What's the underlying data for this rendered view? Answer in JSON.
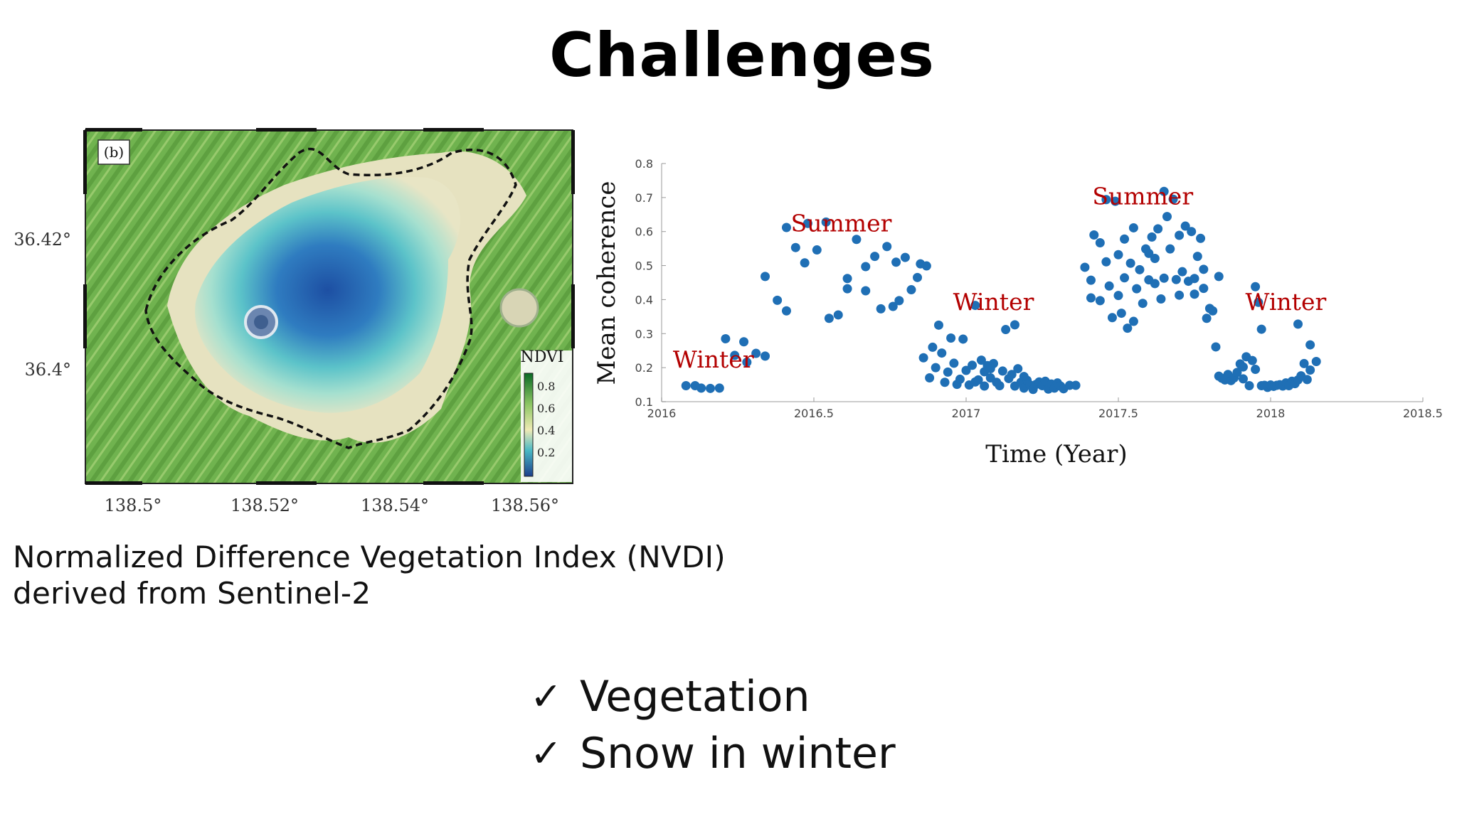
{
  "slide": {
    "title": "Challenges",
    "caption_line1": "Normalized Difference Vegetation Index (NVDI)",
    "caption_line2": "derived from Sentinel-2",
    "bullets": [
      {
        "check": "✓",
        "text": "Vegetation"
      },
      {
        "check": "✓",
        "text": "Snow in winter"
      }
    ]
  },
  "map": {
    "panel_label": "(b)",
    "lat_labels": [
      "36.42°",
      "36.4°"
    ],
    "lon_labels": [
      "138.5°",
      "138.52°",
      "138.54°",
      "138.56°"
    ],
    "colorbar_title": "NDVI",
    "colorbar_ticks": [
      "0.8",
      "0.6",
      "0.4",
      "0.2"
    ]
  },
  "chart_data": {
    "type": "scatter",
    "xlabel": "Time (Year)",
    "ylabel": "Mean coherence",
    "xlim": [
      2016,
      2018.5
    ],
    "ylim": [
      0.1,
      0.8
    ],
    "xticks": [
      "2016",
      "2016.5",
      "2017",
      "2017.5",
      "2018",
      "2018.5"
    ],
    "yticks": [
      "0.1",
      "0.2",
      "0.3",
      "0.4",
      "0.5",
      "0.6",
      "0.7",
      "0.8"
    ],
    "annotations": [
      {
        "text": "Winter",
        "x": 2016.17,
        "y": 0.2
      },
      {
        "text": "Summer",
        "x": 2016.59,
        "y": 0.6
      },
      {
        "text": "Winter",
        "x": 2017.09,
        "y": 0.37
      },
      {
        "text": "Summer",
        "x": 2017.58,
        "y": 0.68
      },
      {
        "text": "Winter",
        "x": 2018.05,
        "y": 0.37
      }
    ],
    "color": "#1f6fb5",
    "annotation_color": "#b30000",
    "points": [
      [
        2016.08,
        0.147
      ],
      [
        2016.11,
        0.147
      ],
      [
        2016.13,
        0.14
      ],
      [
        2016.16,
        0.139
      ],
      [
        2016.19,
        0.14
      ],
      [
        2016.21,
        0.285
      ],
      [
        2016.24,
        0.236
      ],
      [
        2016.27,
        0.276
      ],
      [
        2016.28,
        0.216
      ],
      [
        2016.31,
        0.242
      ],
      [
        2016.34,
        0.234
      ],
      [
        2016.34,
        0.468
      ],
      [
        2016.38,
        0.398
      ],
      [
        2016.41,
        0.367
      ],
      [
        2016.41,
        0.612
      ],
      [
        2016.44,
        0.553
      ],
      [
        2016.47,
        0.508
      ],
      [
        2016.48,
        0.624
      ],
      [
        2016.51,
        0.546
      ],
      [
        2016.54,
        0.628
      ],
      [
        2016.55,
        0.345
      ],
      [
        2016.58,
        0.355
      ],
      [
        2016.61,
        0.462
      ],
      [
        2016.61,
        0.432
      ],
      [
        2016.64,
        0.577
      ],
      [
        2016.67,
        0.426
      ],
      [
        2016.67,
        0.497
      ],
      [
        2016.7,
        0.527
      ],
      [
        2016.72,
        0.373
      ],
      [
        2016.74,
        0.556
      ],
      [
        2016.76,
        0.38
      ],
      [
        2016.77,
        0.51
      ],
      [
        2016.78,
        0.397
      ],
      [
        2016.8,
        0.524
      ],
      [
        2016.82,
        0.429
      ],
      [
        2016.84,
        0.465
      ],
      [
        2016.85,
        0.505
      ],
      [
        2016.87,
        0.499
      ],
      [
        2016.86,
        0.229
      ],
      [
        2016.88,
        0.17
      ],
      [
        2016.89,
        0.26
      ],
      [
        2016.9,
        0.2
      ],
      [
        2016.91,
        0.325
      ],
      [
        2016.92,
        0.243
      ],
      [
        2016.93,
        0.157
      ],
      [
        2016.94,
        0.187
      ],
      [
        2016.95,
        0.287
      ],
      [
        2016.96,
        0.213
      ],
      [
        2016.97,
        0.151
      ],
      [
        2016.98,
        0.166
      ],
      [
        2016.99,
        0.284
      ],
      [
        2017.0,
        0.192
      ],
      [
        2017.01,
        0.149
      ],
      [
        2017.02,
        0.207
      ],
      [
        2017.03,
        0.158
      ],
      [
        2017.03,
        0.383
      ],
      [
        2017.04,
        0.164
      ],
      [
        2017.05,
        0.222
      ],
      [
        2017.06,
        0.188
      ],
      [
        2017.06,
        0.146
      ],
      [
        2017.07,
        0.206
      ],
      [
        2017.08,
        0.17
      ],
      [
        2017.09,
        0.212
      ],
      [
        2017.1,
        0.157
      ],
      [
        2017.11,
        0.147
      ],
      [
        2017.12,
        0.19
      ],
      [
        2017.13,
        0.312
      ],
      [
        2017.14,
        0.168
      ],
      [
        2017.15,
        0.18
      ],
      [
        2017.16,
        0.146
      ],
      [
        2017.17,
        0.197
      ],
      [
        2017.18,
        0.157
      ],
      [
        2017.19,
        0.14
      ],
      [
        2017.2,
        0.163
      ],
      [
        2017.21,
        0.149
      ],
      [
        2017.22,
        0.136
      ],
      [
        2017.23,
        0.151
      ],
      [
        2017.24,
        0.158
      ],
      [
        2017.25,
        0.147
      ],
      [
        2017.26,
        0.16
      ],
      [
        2017.27,
        0.137
      ],
      [
        2017.28,
        0.152
      ],
      [
        2017.29,
        0.14
      ],
      [
        2017.3,
        0.155
      ],
      [
        2017.31,
        0.146
      ],
      [
        2017.32,
        0.138
      ],
      [
        2017.34,
        0.148
      ],
      [
        2017.36,
        0.148
      ],
      [
        2017.19,
        0.174
      ],
      [
        2017.16,
        0.326
      ],
      [
        2017.08,
        0.197
      ],
      [
        2017.39,
        0.495
      ],
      [
        2017.41,
        0.457
      ],
      [
        2017.41,
        0.405
      ],
      [
        2017.42,
        0.59
      ],
      [
        2017.44,
        0.567
      ],
      [
        2017.44,
        0.397
      ],
      [
        2017.46,
        0.694
      ],
      [
        2017.46,
        0.511
      ],
      [
        2017.47,
        0.44
      ],
      [
        2017.48,
        0.347
      ],
      [
        2017.49,
        0.689
      ],
      [
        2017.5,
        0.532
      ],
      [
        2017.5,
        0.412
      ],
      [
        2017.51,
        0.36
      ],
      [
        2017.52,
        0.578
      ],
      [
        2017.52,
        0.464
      ],
      [
        2017.53,
        0.316
      ],
      [
        2017.54,
        0.507
      ],
      [
        2017.55,
        0.336
      ],
      [
        2017.55,
        0.611
      ],
      [
        2017.56,
        0.432
      ],
      [
        2017.57,
        0.488
      ],
      [
        2017.58,
        0.389
      ],
      [
        2017.59,
        0.549
      ],
      [
        2017.6,
        0.536
      ],
      [
        2017.6,
        0.458
      ],
      [
        2017.61,
        0.584
      ],
      [
        2017.62,
        0.447
      ],
      [
        2017.62,
        0.521
      ],
      [
        2017.63,
        0.608
      ],
      [
        2017.64,
        0.402
      ],
      [
        2017.65,
        0.463
      ],
      [
        2017.65,
        0.718
      ],
      [
        2017.66,
        0.644
      ],
      [
        2017.67,
        0.549
      ],
      [
        2017.68,
        0.695
      ],
      [
        2017.69,
        0.459
      ],
      [
        2017.7,
        0.589
      ],
      [
        2017.7,
        0.413
      ],
      [
        2017.71,
        0.482
      ],
      [
        2017.72,
        0.616
      ],
      [
        2017.73,
        0.454
      ],
      [
        2017.74,
        0.6
      ],
      [
        2017.75,
        0.416
      ],
      [
        2017.75,
        0.462
      ],
      [
        2017.76,
        0.527
      ],
      [
        2017.77,
        0.58
      ],
      [
        2017.78,
        0.489
      ],
      [
        2017.78,
        0.433
      ],
      [
        2017.79,
        0.345
      ],
      [
        2017.8,
        0.374
      ],
      [
        2017.81,
        0.367
      ],
      [
        2017.82,
        0.261
      ],
      [
        2017.83,
        0.468
      ],
      [
        2017.83,
        0.175
      ],
      [
        2017.84,
        0.169
      ],
      [
        2017.85,
        0.164
      ],
      [
        2017.86,
        0.18
      ],
      [
        2017.87,
        0.162
      ],
      [
        2017.88,
        0.17
      ],
      [
        2017.89,
        0.186
      ],
      [
        2017.9,
        0.211
      ],
      [
        2017.91,
        0.202
      ],
      [
        2017.91,
        0.167
      ],
      [
        2017.92,
        0.232
      ],
      [
        2017.93,
        0.147
      ],
      [
        2017.94,
        0.221
      ],
      [
        2017.95,
        0.195
      ],
      [
        2017.95,
        0.438
      ],
      [
        2017.96,
        0.392
      ],
      [
        2017.97,
        0.313
      ],
      [
        2017.97,
        0.147
      ],
      [
        2017.98,
        0.148
      ],
      [
        2017.99,
        0.142
      ],
      [
        2018.0,
        0.149
      ],
      [
        2018.01,
        0.145
      ],
      [
        2018.02,
        0.148
      ],
      [
        2018.03,
        0.15
      ],
      [
        2018.04,
        0.146
      ],
      [
        2018.05,
        0.155
      ],
      [
        2018.06,
        0.147
      ],
      [
        2018.07,
        0.16
      ],
      [
        2018.08,
        0.153
      ],
      [
        2018.09,
        0.164
      ],
      [
        2018.09,
        0.328
      ],
      [
        2018.1,
        0.176
      ],
      [
        2018.11,
        0.212
      ],
      [
        2018.12,
        0.165
      ],
      [
        2018.13,
        0.193
      ],
      [
        2018.13,
        0.267
      ],
      [
        2018.15,
        0.218
      ]
    ]
  }
}
